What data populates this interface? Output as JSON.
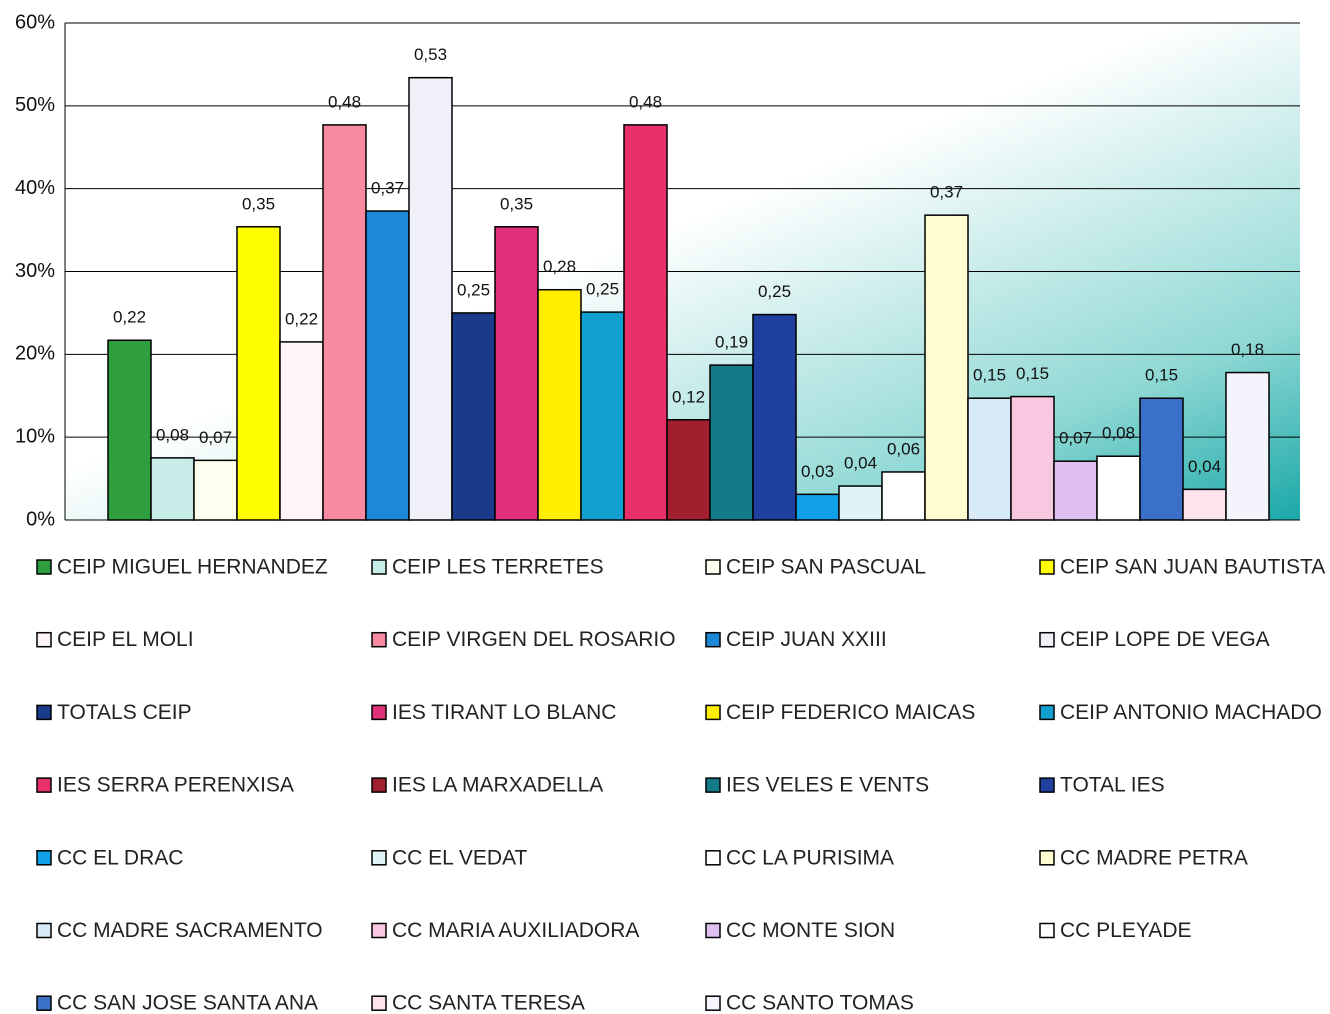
{
  "chart_data": {
    "type": "bar",
    "categories": [
      null
    ],
    "ylim": [
      0,
      60
    ],
    "yticks": [
      {
        "value": 0,
        "label": "0%"
      },
      {
        "value": 10,
        "label": "10%"
      },
      {
        "value": 20,
        "label": "20%"
      },
      {
        "value": 30,
        "label": "30%"
      },
      {
        "value": 40,
        "label": "40%"
      },
      {
        "value": 50,
        "label": "50%"
      },
      {
        "value": 60,
        "label": "60%"
      }
    ],
    "grid": true,
    "legend": "bottom",
    "series": [
      {
        "name": "CEIP MIGUEL HERNANDEZ",
        "color": "#2e9e3e",
        "values": [
          21.7
        ],
        "value_labels": [
          "0,22"
        ]
      },
      {
        "name": "CEIP LES TERRETES",
        "color": "#c8ece8",
        "values": [
          7.5
        ],
        "value_labels": [
          "0,08"
        ]
      },
      {
        "name": "CEIP SAN PASCUAL",
        "color": "#fffff0",
        "values": [
          7.2
        ],
        "value_labels": [
          "0,07"
        ]
      },
      {
        "name": "CEIP SAN JUAN BAUTISTA",
        "color": "#ffff00",
        "values": [
          35.4
        ],
        "value_labels": [
          "0,35"
        ]
      },
      {
        "name": "CEIP EL MOLI",
        "color": "#fff5f8",
        "values": [
          21.5
        ],
        "value_labels": [
          "0,22"
        ]
      },
      {
        "name": "CEIP VIRGEN DEL ROSARIO",
        "color": "#f78aa0",
        "values": [
          47.7
        ],
        "value_labels": [
          "0,48"
        ]
      },
      {
        "name": "CEIP JUAN XXIII",
        "color": "#1e88d8",
        "values": [
          37.3
        ],
        "value_labels": [
          "0,37"
        ]
      },
      {
        "name": "CEIP LOPE DE VEGA",
        "color": "#f0f0f8",
        "values": [
          53.4
        ],
        "value_labels": [
          "0,53"
        ]
      },
      {
        "name": "TOTALS CEIP",
        "color": "#1a3a8a",
        "values": [
          25.0
        ],
        "value_labels": [
          "0,25"
        ]
      },
      {
        "name": "IES TIRANT LO BLANC",
        "color": "#e0307a",
        "values": [
          35.4
        ],
        "value_labels": [
          "0,35"
        ]
      },
      {
        "name": "CEIP FEDERICO MAICAS",
        "color": "#ffee00",
        "values": [
          27.8
        ],
        "value_labels": [
          "0,28"
        ]
      },
      {
        "name": "CEIP ANTONIO MACHADO",
        "color": "#12a0d0",
        "values": [
          25.1
        ],
        "value_labels": [
          "0,25"
        ]
      },
      {
        "name": "IES SERRA PERENXISA",
        "color": "#e8306a",
        "values": [
          47.7
        ],
        "value_labels": [
          "0,48"
        ]
      },
      {
        "name": "IES LA MARXADELLA",
        "color": "#a02030",
        "values": [
          12.1
        ],
        "value_labels": [
          "0,12"
        ]
      },
      {
        "name": "IES VELES E VENTS",
        "color": "#137a8a",
        "values": [
          18.7
        ],
        "value_labels": [
          "0,19"
        ]
      },
      {
        "name": "TOTAL IES",
        "color": "#2040a0",
        "values": [
          24.8
        ],
        "value_labels": [
          "0,25"
        ]
      },
      {
        "name": "CC EL DRAC",
        "color": "#10a0e8",
        "values": [
          3.1
        ],
        "value_labels": [
          "0,03"
        ]
      },
      {
        "name": "CC EL VEDAT",
        "color": "#e0f4f8",
        "values": [
          4.1
        ],
        "value_labels": [
          "0,04"
        ]
      },
      {
        "name": "CC LA PURISIMA",
        "color": "#ffffff",
        "values": [
          5.8
        ],
        "value_labels": [
          "0,06"
        ]
      },
      {
        "name": "CC MADRE PETRA",
        "color": "#fffcd0",
        "values": [
          36.8
        ],
        "value_labels": [
          "0,37"
        ]
      },
      {
        "name": "CC MADRE SACRAMENTO",
        "color": "#d8eaf8",
        "values": [
          14.7
        ],
        "value_labels": [
          "0,15"
        ]
      },
      {
        "name": "CC MARIA AUXILIADORA",
        "color": "#f8c8e0",
        "values": [
          14.9
        ],
        "value_labels": [
          "0,15"
        ]
      },
      {
        "name": "CC MONTE SION",
        "color": "#e0c0f0",
        "values": [
          7.1
        ],
        "value_labels": [
          "0,07"
        ]
      },
      {
        "name": "CC PLEYADE",
        "color": "#ffffff",
        "values": [
          7.7
        ],
        "value_labels": [
          "0,08"
        ]
      },
      {
        "name": "CC SAN JOSE SANTA ANA",
        "color": "#3a70c8",
        "values": [
          14.7
        ],
        "value_labels": [
          "0,15"
        ]
      },
      {
        "name": "CC SANTA TERESA",
        "color": "#fde4ec",
        "values": [
          3.7
        ],
        "value_labels": [
          "0,04"
        ]
      },
      {
        "name": "CC SANTO TOMAS",
        "color": "#f4f4fc",
        "values": [
          17.8
        ],
        "value_labels": [
          "0,18"
        ]
      }
    ]
  }
}
